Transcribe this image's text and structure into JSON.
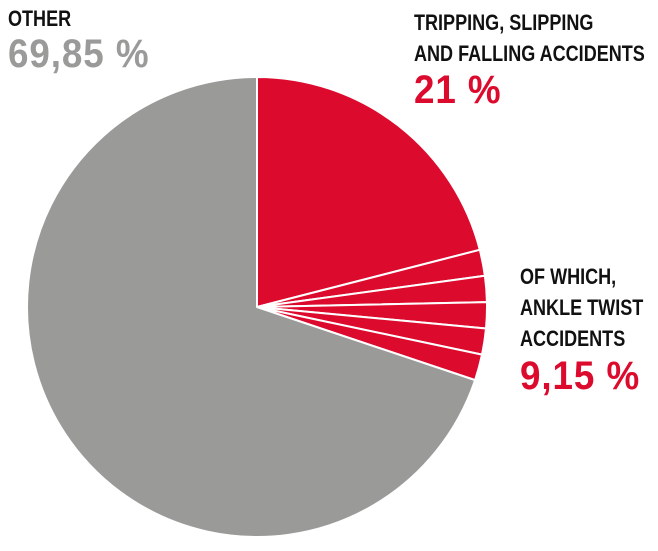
{
  "chart_data": {
    "type": "pie",
    "title": "",
    "slices": [
      {
        "label": "OTHER",
        "value": 69.85,
        "value_text": "69,85 %",
        "color": "#9a9a99"
      },
      {
        "label": "TRIPPING, SLIPPING AND FALLING ACCIDENTS",
        "value": 21,
        "value_text": "21 %",
        "color": "#dc0b2e"
      },
      {
        "label": "OF WHICH, ANKLE TWIST ACCIDENTS",
        "value": 9.15,
        "value_text": "9,15 %",
        "color": "#dc0b2e"
      }
    ],
    "labels": {
      "other": {
        "line1": "OTHER",
        "pct": "69,85 %"
      },
      "trip": {
        "line1": "TRIPPING, SLIPPING",
        "line2": "AND FALLING ACCIDENTS",
        "pct": "21 %"
      },
      "ankle": {
        "line1": "OF WHICH,",
        "line2": "ANKLE TWIST",
        "line3": "ACCIDENTS",
        "pct": "9,15 %"
      }
    },
    "ankle_subdivisions": 5,
    "slice_border_color": "#ffffff"
  }
}
